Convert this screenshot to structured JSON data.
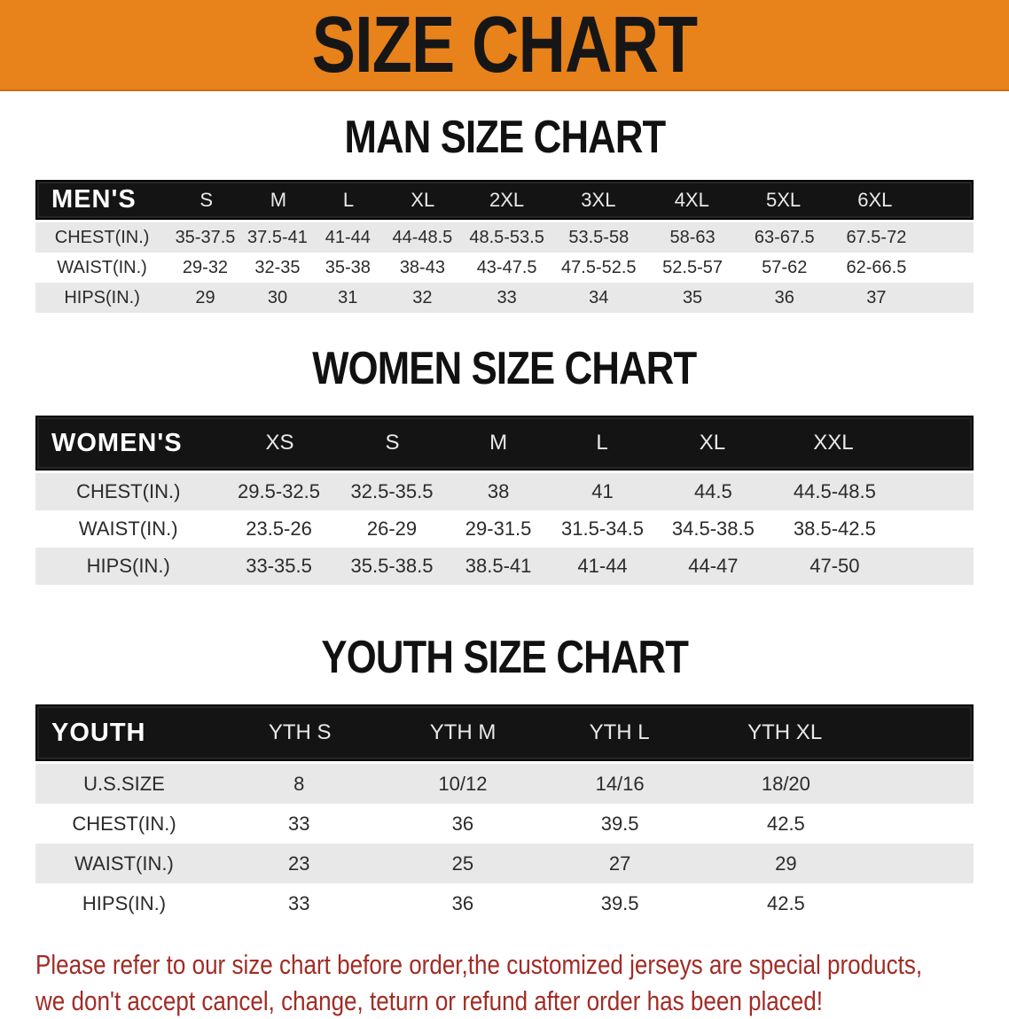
{
  "banner": {
    "title": "SIZE CHART",
    "bg_color": "#E8821B",
    "text_color": "#161616"
  },
  "sections": [
    {
      "title": "MAN SIZE CHART",
      "group_label": "MEN'S",
      "sizes": [
        "S",
        "M",
        "L",
        "XL",
        "2XL",
        "3XL",
        "4XL",
        "5XL",
        "6XL"
      ],
      "rows": [
        {
          "label": "CHEST(IN.)",
          "values": [
            "35-37.5",
            "37.5-41",
            "41-44",
            "44-48.5",
            "48.5-53.5",
            "53.5-58",
            "58-63",
            "63-67.5",
            "67.5-72"
          ]
        },
        {
          "label": "WAIST(IN.)",
          "values": [
            "29-32",
            "32-35",
            "35-38",
            "38-43",
            "43-47.5",
            "47.5-52.5",
            "52.5-57",
            "57-62",
            "62-66.5"
          ]
        },
        {
          "label": "HIPS(IN.)",
          "values": [
            "29",
            "30",
            "31",
            "32",
            "33",
            "34",
            "35",
            "36",
            "37"
          ]
        }
      ]
    },
    {
      "title": "WOMEN SIZE CHART",
      "group_label": "WOMEN'S",
      "sizes": [
        "XS",
        "S",
        "M",
        "L",
        "XL",
        "XXL"
      ],
      "rows": [
        {
          "label": "CHEST(IN.)",
          "values": [
            "29.5-32.5",
            "32.5-35.5",
            "38",
            "41",
            "44.5",
            "44.5-48.5"
          ]
        },
        {
          "label": "WAIST(IN.)",
          "values": [
            "23.5-26",
            "26-29",
            "29-31.5",
            "31.5-34.5",
            "34.5-38.5",
            "38.5-42.5"
          ]
        },
        {
          "label": "HIPS(IN.)",
          "values": [
            "33-35.5",
            "35.5-38.5",
            "38.5-41",
            "41-44",
            "44-47",
            "47-50"
          ]
        }
      ]
    },
    {
      "title": "YOUTH SIZE CHART",
      "group_label": "YOUTH",
      "sizes": [
        "YTH S",
        "YTH M",
        "YTH L",
        "YTH XL"
      ],
      "rows": [
        {
          "label": "U.S.SIZE",
          "values": [
            "8",
            "10/12",
            "14/16",
            "18/20"
          ]
        },
        {
          "label": "CHEST(IN.)",
          "values": [
            "33",
            "36",
            "39.5",
            "42.5"
          ]
        },
        {
          "label": "WAIST(IN.)",
          "values": [
            "23",
            "25",
            "27",
            "29"
          ]
        },
        {
          "label": "HIPS(IN.)",
          "values": [
            "33",
            "36",
            "39.5",
            "42.5"
          ]
        }
      ]
    }
  ],
  "disclaimer": {
    "lines": [
      "Please refer to our size chart before order,the customized jerseys are special products,",
      "we don't accept cancel, change, teturn or refund after order has been placed!"
    ],
    "text_color": "#A12C26"
  },
  "colors": {
    "table_header_bg": "#141414",
    "row_stripe": "#E8E8E8"
  }
}
